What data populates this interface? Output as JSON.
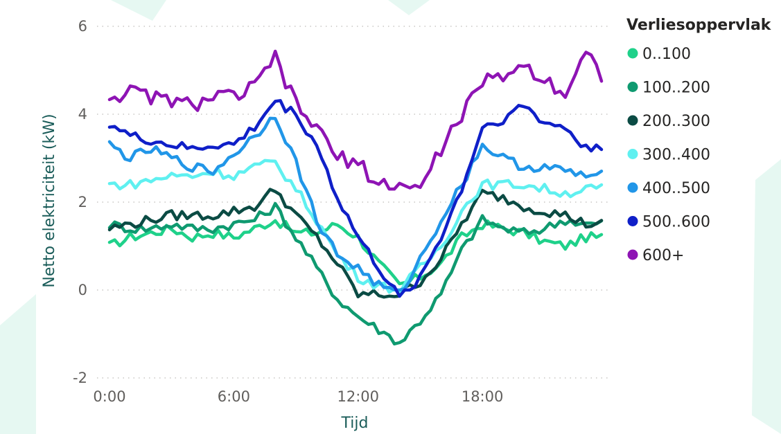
{
  "chart_data": {
    "type": "line",
    "title": "",
    "xlabel": "Tijd",
    "ylabel": "Netto elektriciteit (kW)",
    "x_ticks": [
      "0:00",
      "6:00",
      "12:00",
      "18:00"
    ],
    "x_tick_values": [
      0,
      6,
      12,
      18
    ],
    "y_ticks": [
      "6",
      "4",
      "2",
      "0",
      "-2"
    ],
    "y_tick_values": [
      6,
      4,
      2,
      0,
      -2
    ],
    "xlim": [
      0,
      23.75
    ],
    "ylim": [
      -2,
      6
    ],
    "grid": "horizontal dotted",
    "legend": {
      "title": "Verliesoppervlak",
      "position": "right"
    },
    "x_step_hours": 0.25,
    "series": [
      {
        "name": "0..100",
        "color": "#1fd18a",
        "points": [
          [
            0,
            1.0
          ],
          [
            1,
            1.2
          ],
          [
            2,
            1.3
          ],
          [
            3,
            1.4
          ],
          [
            4,
            1.2
          ],
          [
            5,
            1.3
          ],
          [
            6,
            1.2
          ],
          [
            7,
            1.4
          ],
          [
            8,
            1.6
          ],
          [
            9,
            1.3
          ],
          [
            10,
            1.3
          ],
          [
            11,
            1.5
          ],
          [
            12,
            1.2
          ],
          [
            13,
            0.6
          ],
          [
            14,
            0.1
          ],
          [
            15,
            0.3
          ],
          [
            16,
            0.6
          ],
          [
            17,
            1.2
          ],
          [
            18,
            1.5
          ],
          [
            19,
            1.4
          ],
          [
            20,
            1.3
          ],
          [
            21,
            1.1
          ],
          [
            22,
            1.0
          ],
          [
            23,
            1.2
          ],
          [
            23.75,
            1.2
          ]
        ]
      },
      {
        "name": "100..200",
        "color": "#0f9a70",
        "points": [
          [
            0,
            1.5
          ],
          [
            1,
            1.4
          ],
          [
            2,
            1.4
          ],
          [
            3,
            1.5
          ],
          [
            4,
            1.4
          ],
          [
            5,
            1.4
          ],
          [
            6,
            1.5
          ],
          [
            7,
            1.6
          ],
          [
            8,
            1.9
          ],
          [
            9,
            1.2
          ],
          [
            10,
            0.5
          ],
          [
            11,
            -0.2
          ],
          [
            12,
            -0.6
          ],
          [
            13,
            -0.9
          ],
          [
            14,
            -1.2
          ],
          [
            15,
            -0.7
          ],
          [
            16,
            -0.1
          ],
          [
            17,
            0.9
          ],
          [
            18,
            1.6
          ],
          [
            19,
            1.4
          ],
          [
            20,
            1.3
          ],
          [
            21,
            1.4
          ],
          [
            22,
            1.6
          ],
          [
            23,
            1.5
          ],
          [
            23.75,
            1.5
          ]
        ]
      },
      {
        "name": "200..300",
        "color": "#0b4b44",
        "points": [
          [
            0,
            1.4
          ],
          [
            1,
            1.5
          ],
          [
            2,
            1.6
          ],
          [
            3,
            1.7
          ],
          [
            4,
            1.7
          ],
          [
            5,
            1.7
          ],
          [
            6,
            1.8
          ],
          [
            7,
            1.9
          ],
          [
            8,
            2.3
          ],
          [
            9,
            1.7
          ],
          [
            10,
            1.2
          ],
          [
            11,
            0.6
          ],
          [
            12,
            -0.1
          ],
          [
            13,
            -0.1
          ],
          [
            14,
            -0.1
          ],
          [
            15,
            0.2
          ],
          [
            16,
            0.7
          ],
          [
            17,
            1.5
          ],
          [
            18,
            2.2
          ],
          [
            19,
            2.1
          ],
          [
            20,
            1.9
          ],
          [
            21,
            1.8
          ],
          [
            22,
            1.7
          ],
          [
            23,
            1.5
          ],
          [
            23.75,
            1.5
          ]
        ]
      },
      {
        "name": "300..400",
        "color": "#5ff0f0",
        "points": [
          [
            0,
            2.4
          ],
          [
            1,
            2.4
          ],
          [
            2,
            2.5
          ],
          [
            3,
            2.6
          ],
          [
            4,
            2.6
          ],
          [
            5,
            2.7
          ],
          [
            6,
            2.6
          ],
          [
            7,
            2.8
          ],
          [
            8,
            2.9
          ],
          [
            9,
            2.3
          ],
          [
            10,
            1.6
          ],
          [
            11,
            0.8
          ],
          [
            12,
            0.3
          ],
          [
            13,
            0.1
          ],
          [
            14,
            0.0
          ],
          [
            15,
            0.5
          ],
          [
            16,
            1.0
          ],
          [
            17,
            1.8
          ],
          [
            18,
            2.4
          ],
          [
            19,
            2.4
          ],
          [
            20,
            2.4
          ],
          [
            21,
            2.3
          ],
          [
            22,
            2.2
          ],
          [
            23,
            2.3
          ],
          [
            23.75,
            2.3
          ]
        ]
      },
      {
        "name": "400..500",
        "color": "#2196e8",
        "points": [
          [
            0,
            3.3
          ],
          [
            1,
            3.0
          ],
          [
            2,
            3.2
          ],
          [
            3,
            3.0
          ],
          [
            4,
            2.8
          ],
          [
            5,
            2.7
          ],
          [
            6,
            3.1
          ],
          [
            7,
            3.5
          ],
          [
            8,
            4.0
          ],
          [
            9,
            2.9
          ],
          [
            10,
            1.6
          ],
          [
            11,
            0.8
          ],
          [
            12,
            0.5
          ],
          [
            13,
            0.1
          ],
          [
            14,
            -0.1
          ],
          [
            15,
            0.7
          ],
          [
            16,
            1.6
          ],
          [
            17,
            2.4
          ],
          [
            18,
            3.3
          ],
          [
            19,
            3.0
          ],
          [
            20,
            2.8
          ],
          [
            21,
            2.8
          ],
          [
            22,
            2.7
          ],
          [
            23,
            2.6
          ],
          [
            23.75,
            2.6
          ]
        ]
      },
      {
        "name": "500..600",
        "color": "#0f1fc8",
        "points": [
          [
            0,
            3.8
          ],
          [
            1,
            3.5
          ],
          [
            2,
            3.4
          ],
          [
            3,
            3.3
          ],
          [
            4,
            3.2
          ],
          [
            5,
            3.3
          ],
          [
            6,
            3.3
          ],
          [
            7,
            3.7
          ],
          [
            8,
            4.3
          ],
          [
            9,
            4.0
          ],
          [
            10,
            3.3
          ],
          [
            11,
            2.1
          ],
          [
            12,
            1.2
          ],
          [
            13,
            0.5
          ],
          [
            14,
            -0.2
          ],
          [
            15,
            0.3
          ],
          [
            16,
            1.2
          ],
          [
            17,
            2.3
          ],
          [
            18,
            3.7
          ],
          [
            19,
            3.9
          ],
          [
            20,
            4.2
          ],
          [
            21,
            3.8
          ],
          [
            22,
            3.7
          ],
          [
            23,
            3.2
          ],
          [
            23.75,
            3.3
          ]
        ]
      },
      {
        "name": "600+",
        "color": "#8e14b4",
        "points": [
          [
            0,
            4.4
          ],
          [
            1,
            4.5
          ],
          [
            2,
            4.4
          ],
          [
            3,
            4.3
          ],
          [
            4,
            4.2
          ],
          [
            5,
            4.4
          ],
          [
            6,
            4.4
          ],
          [
            7,
            4.6
          ],
          [
            8,
            5.3
          ],
          [
            9,
            4.2
          ],
          [
            10,
            3.7
          ],
          [
            11,
            3.0
          ],
          [
            12,
            2.9
          ],
          [
            13,
            2.4
          ],
          [
            14,
            2.4
          ],
          [
            15,
            2.3
          ],
          [
            16,
            3.2
          ],
          [
            17,
            4.0
          ],
          [
            18,
            4.7
          ],
          [
            19,
            4.9
          ],
          [
            20,
            5.1
          ],
          [
            21,
            4.8
          ],
          [
            22,
            4.5
          ],
          [
            23,
            5.4
          ],
          [
            23.75,
            4.9
          ]
        ]
      }
    ]
  }
}
